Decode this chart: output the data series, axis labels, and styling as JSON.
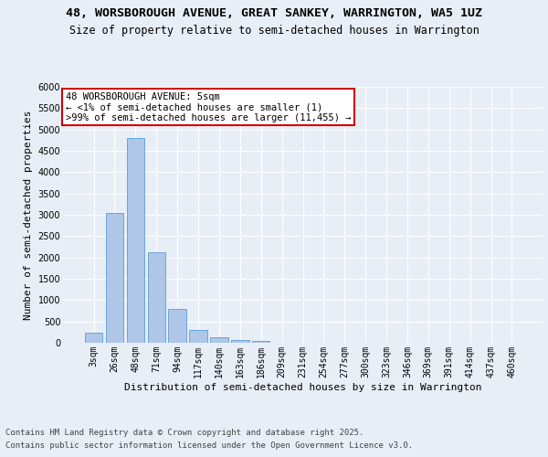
{
  "title_line1": "48, WORSBOROUGH AVENUE, GREAT SANKEY, WARRINGTON, WA5 1UZ",
  "title_line2": "Size of property relative to semi-detached houses in Warrington",
  "xlabel": "Distribution of semi-detached houses by size in Warrington",
  "ylabel": "Number of semi-detached properties",
  "categories": [
    "3sqm",
    "26sqm",
    "48sqm",
    "71sqm",
    "94sqm",
    "117sqm",
    "140sqm",
    "163sqm",
    "186sqm",
    "209sqm",
    "231sqm",
    "254sqm",
    "277sqm",
    "300sqm",
    "323sqm",
    "346sqm",
    "369sqm",
    "391sqm",
    "414sqm",
    "437sqm",
    "460sqm"
  ],
  "values": [
    230,
    3050,
    4800,
    2130,
    800,
    300,
    120,
    70,
    45,
    0,
    0,
    0,
    0,
    0,
    0,
    0,
    0,
    0,
    0,
    0,
    0
  ],
  "bar_color": "#aec6e8",
  "bar_edge_color": "#5b9bd5",
  "annotation_title": "48 WORSBOROUGH AVENUE: 5sqm",
  "annotation_line2": "← <1% of semi-detached houses are smaller (1)",
  "annotation_line3": ">99% of semi-detached houses are larger (11,455) →",
  "annotation_box_color": "#ffffff",
  "annotation_box_edge": "#cc0000",
  "ylim": [
    0,
    6000
  ],
  "yticks": [
    0,
    500,
    1000,
    1500,
    2000,
    2500,
    3000,
    3500,
    4000,
    4500,
    5000,
    5500,
    6000
  ],
  "background_color": "#e8eef5",
  "plot_bg_color": "#e8eef5",
  "grid_color": "#ffffff",
  "footer_line1": "Contains HM Land Registry data © Crown copyright and database right 2025.",
  "footer_line2": "Contains public sector information licensed under the Open Government Licence v3.0.",
  "title_fontsize": 9.5,
  "subtitle_fontsize": 8.5,
  "axis_label_fontsize": 8,
  "tick_fontsize": 7,
  "annotation_fontsize": 7.5,
  "footer_fontsize": 6.5
}
